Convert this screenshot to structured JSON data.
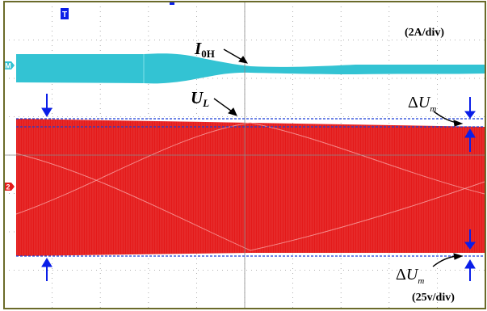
{
  "chart_data": {
    "type": "line",
    "title": "",
    "grid": true,
    "channels": [
      {
        "name": "I",
        "name_subscript": "0H",
        "scale": "(2A/div)",
        "color": "#33c3d3"
      },
      {
        "name": "U",
        "name_subscript": "L",
        "scale": "(25v/div)",
        "color": "#e41a1a"
      }
    ],
    "delta_label": {
      "prefix": "Δ",
      "symbol": "U",
      "subscript": "m"
    },
    "channel_markers": [
      "M",
      "2"
    ],
    "marker_colors": {
      "arrow": "#0a1ee8",
      "dashed_line": "#1a3fd8"
    },
    "x_divisions": 10,
    "y_divisions": 8
  }
}
